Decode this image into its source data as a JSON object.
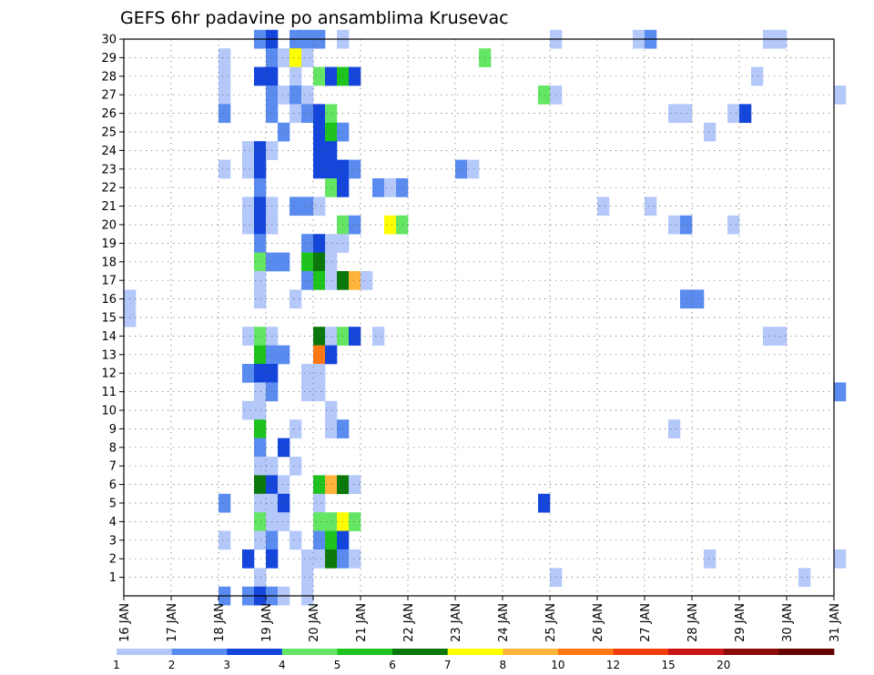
{
  "chart_data": {
    "type": "heatmap",
    "title": "GEFS 6hr padavine po ansamblima Krusevac",
    "x_tick_labels": [
      "16 JAN",
      "17 JAN",
      "18 JAN",
      "19 JAN",
      "20 JAN",
      "21 JAN",
      "22 JAN",
      "23 JAN",
      "24 JAN",
      "25 JAN",
      "26 JAN",
      "27 JAN",
      "28 JAN",
      "29 JAN",
      "30 JAN",
      "31 JAN"
    ],
    "x_range_days": [
      16,
      31
    ],
    "y_tick_labels": [
      "1",
      "2",
      "3",
      "4",
      "5",
      "6",
      "7",
      "8",
      "9",
      "10",
      "11",
      "12",
      "13",
      "14",
      "15",
      "16",
      "17",
      "18",
      "19",
      "20",
      "21",
      "22",
      "23",
      "24",
      "25",
      "26",
      "27",
      "28",
      "29",
      "30"
    ],
    "y_range": [
      0,
      30
    ],
    "grid": true,
    "color_bins": [
      {
        "label": "1",
        "color": "#b4c8fa"
      },
      {
        "label": "2",
        "color": "#5a8cf0"
      },
      {
        "label": "3",
        "color": "#1446dc"
      },
      {
        "label": "4",
        "color": "#64e664"
      },
      {
        "label": "5",
        "color": "#1ec31e"
      },
      {
        "label": "6",
        "color": "#0a780a"
      },
      {
        "label": "7",
        "color": "#ffff00"
      },
      {
        "label": "8",
        "color": "#ffb43c"
      },
      {
        "label": "10",
        "color": "#ff7814"
      },
      {
        "label": "12",
        "color": "#f03c0a"
      },
      {
        "label": "15",
        "color": "#c81414"
      },
      {
        "label": "20",
        "color": "#8c0a0a"
      },
      {
        "label": "",
        "color": "#640000"
      }
    ],
    "cells": [
      [
        30,
        "18.75",
        1
      ],
      [
        30,
        "19",
        2
      ],
      [
        30,
        "19.5",
        1
      ],
      [
        30,
        "19.75",
        1
      ],
      [
        30,
        "20.5",
        0
      ],
      [
        30,
        "25",
        0
      ],
      [
        30,
        "26.75",
        0
      ],
      [
        30,
        "27",
        1
      ],
      [
        30,
        "29.5",
        0
      ],
      [
        30,
        "29.75",
        0
      ],
      [
        30,
        "20",
        1
      ],
      [
        29,
        "18",
        0
      ],
      [
        29,
        "19",
        1
      ],
      [
        29,
        "19.25",
        0
      ],
      [
        29,
        "19.5",
        6
      ],
      [
        29,
        "19.75",
        0
      ],
      [
        29,
        "23.5",
        3
      ],
      [
        28,
        "18",
        0
      ],
      [
        28,
        "18.75",
        2
      ],
      [
        28,
        "19",
        2
      ],
      [
        28,
        "19.5",
        0
      ],
      [
        28,
        "20",
        3
      ],
      [
        28,
        "20.25",
        2
      ],
      [
        28,
        "20.5",
        4
      ],
      [
        28,
        "20.75",
        2
      ],
      [
        28,
        "29.25",
        0
      ],
      [
        27,
        "18",
        0
      ],
      [
        27,
        "19",
        1
      ],
      [
        27,
        "19.25",
        0
      ],
      [
        27,
        "19.5",
        1
      ],
      [
        27,
        "19.75",
        0
      ],
      [
        27,
        "24.75",
        3
      ],
      [
        27,
        "25",
        0
      ],
      [
        27,
        "31",
        0
      ],
      [
        26,
        "18",
        1
      ],
      [
        26,
        "19",
        1
      ],
      [
        26,
        "19.5",
        0
      ],
      [
        26,
        "19.75",
        1
      ],
      [
        26,
        "20",
        2
      ],
      [
        26,
        "20.25",
        3
      ],
      [
        26,
        "27.5",
        0
      ],
      [
        26,
        "27.75",
        0
      ],
      [
        26,
        "28.75",
        0
      ],
      [
        26,
        "29",
        2
      ],
      [
        25,
        "19.25",
        1
      ],
      [
        25,
        "20",
        2
      ],
      [
        25,
        "20.25",
        4
      ],
      [
        25,
        "20.5",
        1
      ],
      [
        25,
        "28.25",
        0
      ],
      [
        24,
        "18.5",
        0
      ],
      [
        24,
        "18.75",
        2
      ],
      [
        24,
        "19",
        0
      ],
      [
        24,
        "20",
        2
      ],
      [
        24,
        "20.25",
        2
      ],
      [
        23,
        "18",
        0
      ],
      [
        23,
        "18.5",
        0
      ],
      [
        23,
        "18.75",
        2
      ],
      [
        23,
        "20",
        2
      ],
      [
        23,
        "20.25",
        2
      ],
      [
        23,
        "20.5",
        2
      ],
      [
        23,
        "20.75",
        1
      ],
      [
        23,
        "23",
        1
      ],
      [
        23,
        "23.25",
        0
      ],
      [
        22,
        "18.75",
        1
      ],
      [
        22,
        "20.25",
        3
      ],
      [
        22,
        "20.5",
        2
      ],
      [
        22,
        "21.25",
        1
      ],
      [
        22,
        "21.5",
        0
      ],
      [
        22,
        "21.75",
        1
      ],
      [
        21,
        "18.5",
        0
      ],
      [
        21,
        "18.75",
        2
      ],
      [
        21,
        "19",
        0
      ],
      [
        21,
        "19.5",
        1
      ],
      [
        21,
        "19.75",
        1
      ],
      [
        21,
        "20",
        0
      ],
      [
        21,
        "26",
        0
      ],
      [
        21,
        "27",
        0
      ],
      [
        20,
        "18.5",
        0
      ],
      [
        20,
        "18.75",
        2
      ],
      [
        20,
        "19",
        0
      ],
      [
        20,
        "20.5",
        3
      ],
      [
        20,
        "20.75",
        1
      ],
      [
        20,
        "21.5",
        6
      ],
      [
        20,
        "21.75",
        3
      ],
      [
        20,
        "27.5",
        0
      ],
      [
        20,
        "27.75",
        1
      ],
      [
        20,
        "28.75",
        0
      ],
      [
        19,
        "18.75",
        1
      ],
      [
        19,
        "19.75",
        1
      ],
      [
        19,
        "20",
        2
      ],
      [
        19,
        "20.25",
        0
      ],
      [
        19,
        "20.5",
        0
      ],
      [
        18,
        "18.75",
        3
      ],
      [
        18,
        "19",
        1
      ],
      [
        18,
        "19.25",
        1
      ],
      [
        18,
        "19.75",
        4
      ],
      [
        18,
        "20",
        5
      ],
      [
        18,
        "20.25",
        0
      ],
      [
        17,
        "18.75",
        0
      ],
      [
        17,
        "19.75",
        1
      ],
      [
        17,
        "20",
        4
      ],
      [
        17,
        "20.25",
        0
      ],
      [
        17,
        "20.5",
        5
      ],
      [
        17,
        "20.75",
        7
      ],
      [
        17,
        "21",
        0
      ],
      [
        16,
        "18.75",
        0
      ],
      [
        16,
        "19.5",
        0
      ],
      [
        16,
        "16",
        0
      ],
      [
        16,
        "27.75",
        1
      ],
      [
        16,
        "28",
        1
      ],
      [
        15,
        "16",
        0
      ],
      [
        14,
        "18.5",
        0
      ],
      [
        14,
        "18.75",
        3
      ],
      [
        14,
        "19",
        0
      ],
      [
        14,
        "20",
        5
      ],
      [
        14,
        "20.25",
        0
      ],
      [
        14,
        "20.5",
        3
      ],
      [
        14,
        "20.75",
        2
      ],
      [
        14,
        "21.25",
        0
      ],
      [
        14,
        "29.5",
        0
      ],
      [
        14,
        "29.75",
        0
      ],
      [
        13,
        "18.75",
        4
      ],
      [
        13,
        "19",
        1
      ],
      [
        13,
        "19.25",
        1
      ],
      [
        13,
        "20",
        8
      ],
      [
        13,
        "20.25",
        2
      ],
      [
        12,
        "18.5",
        1
      ],
      [
        12,
        "18.75",
        2
      ],
      [
        12,
        "19",
        2
      ],
      [
        12,
        "19.75",
        0
      ],
      [
        12,
        "20",
        0
      ],
      [
        11,
        "18.75",
        0
      ],
      [
        11,
        "19",
        1
      ],
      [
        11,
        "19.75",
        0
      ],
      [
        11,
        "20",
        0
      ],
      [
        11,
        "31",
        1
      ],
      [
        10,
        "18.5",
        0
      ],
      [
        10,
        "18.75",
        0
      ],
      [
        10,
        "20.25",
        0
      ],
      [
        9,
        "18.75",
        4
      ],
      [
        9,
        "19.5",
        0
      ],
      [
        9,
        "20.25",
        0
      ],
      [
        9,
        "20.5",
        1
      ],
      [
        9,
        "27.5",
        0
      ],
      [
        8,
        "18.75",
        1
      ],
      [
        8,
        "19.25",
        2
      ],
      [
        7,
        "18.75",
        0
      ],
      [
        7,
        "19",
        0
      ],
      [
        7,
        "19.5",
        0
      ],
      [
        6,
        "18.75",
        5
      ],
      [
        6,
        "19",
        2
      ],
      [
        6,
        "19.25",
        0
      ],
      [
        6,
        "20",
        4
      ],
      [
        6,
        "20.25",
        7
      ],
      [
        6,
        "20.5",
        5
      ],
      [
        6,
        "20.75",
        0
      ],
      [
        5,
        "18",
        1
      ],
      [
        5,
        "18.75",
        0
      ],
      [
        5,
        "19",
        0
      ],
      [
        5,
        "19.25",
        2
      ],
      [
        5,
        "20",
        0
      ],
      [
        5,
        "24.75",
        2
      ],
      [
        4,
        "18.75",
        3
      ],
      [
        4,
        "19",
        0
      ],
      [
        4,
        "19.25",
        0
      ],
      [
        4,
        "20",
        3
      ],
      [
        4,
        "20.25",
        3
      ],
      [
        4,
        "20.5",
        6
      ],
      [
        4,
        "20.75",
        3
      ],
      [
        3,
        "18",
        0
      ],
      [
        3,
        "18.75",
        0
      ],
      [
        3,
        "19",
        1
      ],
      [
        3,
        "19.5",
        0
      ],
      [
        3,
        "20",
        1
      ],
      [
        3,
        "20.25",
        4
      ],
      [
        3,
        "20.5",
        2
      ],
      [
        2,
        "18.5",
        2
      ],
      [
        2,
        "19",
        2
      ],
      [
        2,
        "19.75",
        0
      ],
      [
        2,
        "20",
        0
      ],
      [
        2,
        "20.25",
        5
      ],
      [
        2,
        "20.5",
        1
      ],
      [
        2,
        "20.75",
        0
      ],
      [
        2,
        "28.25",
        0
      ],
      [
        2,
        "31",
        0
      ],
      [
        1,
        "18.75",
        0
      ],
      [
        1,
        "19.75",
        0
      ],
      [
        1,
        "25",
        0
      ],
      [
        1,
        "30.25",
        0
      ],
      [
        0,
        "18",
        1
      ],
      [
        0,
        "18.5",
        1
      ],
      [
        0,
        "18.75",
        2
      ],
      [
        0,
        "19",
        1
      ],
      [
        0,
        "19.25",
        0
      ],
      [
        0,
        "19.75",
        0
      ]
    ]
  }
}
